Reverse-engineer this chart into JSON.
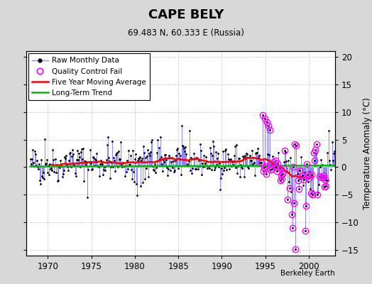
{
  "title": "CAPE BELY",
  "subtitle": "69.483 N, 60.333 E (Russia)",
  "ylabel": "Temperature Anomaly (°C)",
  "credit": "Berkeley Earth",
  "ylim": [
    -16,
    21
  ],
  "yticks": [
    -15,
    -10,
    -5,
    0,
    5,
    10,
    15,
    20
  ],
  "xlim": [
    1967.5,
    2003.0
  ],
  "xticks": [
    1970,
    1975,
    1980,
    1985,
    1990,
    1995,
    2000
  ],
  "start_year": 1968,
  "end_year": 2002,
  "raw_line_color": "#8888ff",
  "raw_dot_color": "#000000",
  "ma_color": "#ff0000",
  "trend_color": "#00bb00",
  "qc_color": "#ff00ff",
  "bg_color": "#d8d8d8",
  "plot_bg": "#ffffff",
  "seed": 42,
  "trend_value": 0.3,
  "figwidth": 5.24,
  "figheight": 4.0,
  "dpi": 100
}
